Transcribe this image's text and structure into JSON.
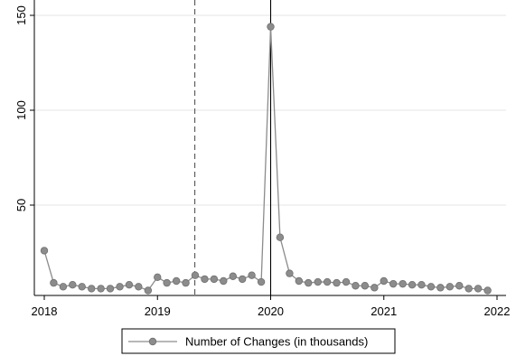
{
  "chart_data": {
    "type": "line",
    "title": "",
    "xlabel": "",
    "ylabel": "",
    "xlim": [
      2018,
      2022
    ],
    "ylim": [
      0,
      150
    ],
    "x_ticks": [
      2018,
      2019,
      2020,
      2021,
      2022
    ],
    "y_ticks": [
      50,
      100,
      150
    ],
    "grid": true,
    "legend_position": "bottom",
    "vertical_lines": [
      {
        "x": 2019.33,
        "style": "dashed"
      },
      {
        "x": 2020.0,
        "style": "solid"
      }
    ],
    "series": [
      {
        "name": "Number of Changes (in thousands)",
        "color": "#8c8c8c",
        "marker": "circle",
        "x": [
          2018.0,
          2018.083,
          2018.167,
          2018.25,
          2018.333,
          2018.417,
          2018.5,
          2018.583,
          2018.667,
          2018.75,
          2018.833,
          2018.917,
          2019.0,
          2019.083,
          2019.167,
          2019.25,
          2019.333,
          2019.417,
          2019.5,
          2019.583,
          2019.667,
          2019.75,
          2019.833,
          2019.917,
          2020.0,
          2020.083,
          2020.167,
          2020.25,
          2020.333,
          2020.417,
          2020.5,
          2020.583,
          2020.667,
          2020.75,
          2020.833,
          2020.917,
          2021.0,
          2021.083,
          2021.167,
          2021.25,
          2021.333,
          2021.417,
          2021.5,
          2021.583,
          2021.667,
          2021.75,
          2021.833,
          2021.917
        ],
        "values": [
          26,
          9,
          7,
          8,
          7,
          6,
          6,
          6,
          7,
          8,
          7,
          5,
          12,
          9,
          10,
          9,
          13,
          11,
          11,
          10,
          12.5,
          11,
          13,
          9.5,
          144,
          33,
          14,
          10,
          9,
          9.5,
          9.5,
          9,
          9.5,
          7.5,
          7.5,
          6.5,
          10,
          8.5,
          8.5,
          8,
          8,
          7,
          6.5,
          7,
          7.5,
          6,
          6,
          5
        ]
      }
    ]
  }
}
